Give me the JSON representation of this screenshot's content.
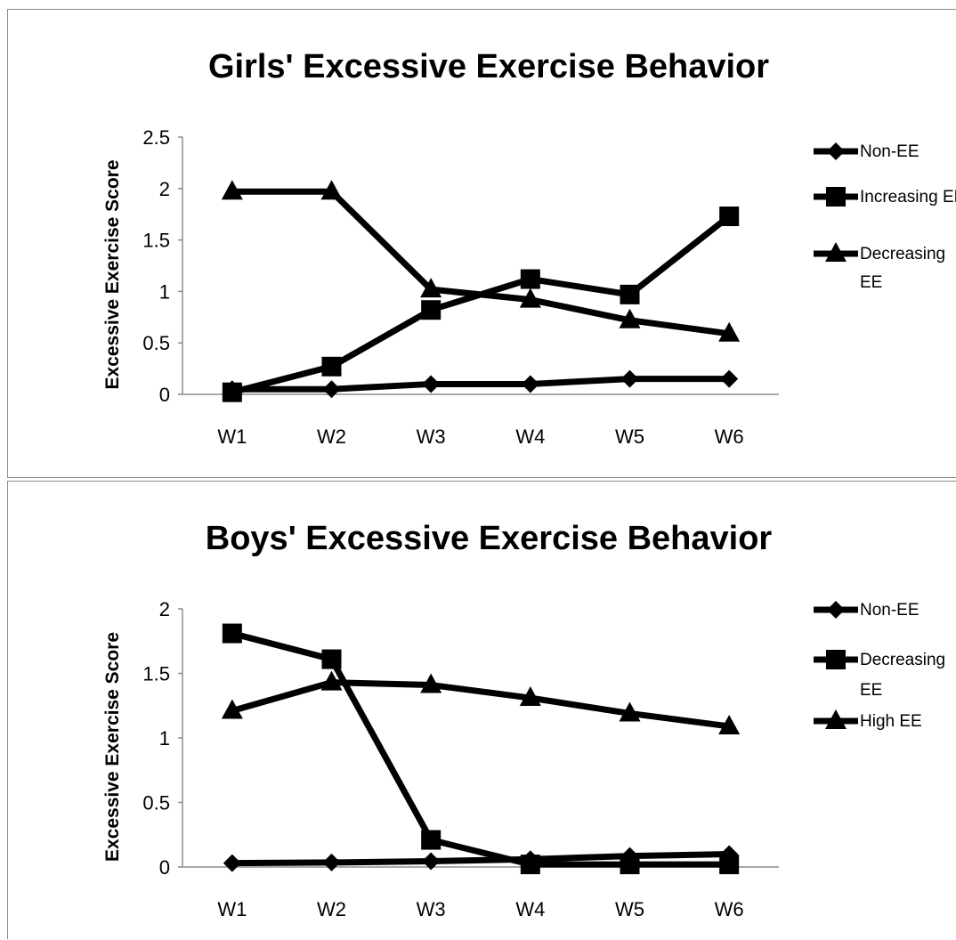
{
  "chart_data": [
    {
      "type": "line",
      "title": "Girls' Excessive Exercise Behavior",
      "xlabel": "",
      "ylabel": "Excessive Exercise Score",
      "categories": [
        "W1",
        "W2",
        "W3",
        "W4",
        "W5",
        "W6"
      ],
      "ylim": [
        0,
        2.5
      ],
      "yticks": [
        0,
        0.5,
        1,
        1.5,
        2,
        2.5
      ],
      "ytick_labels": [
        "0",
        "0.5",
        "1",
        "1.5",
        "2",
        "2.5"
      ],
      "grid": false,
      "legend_position": "right",
      "line_color": "#000000",
      "series": [
        {
          "name": "Non-EE",
          "marker": "diamond",
          "values": [
            0.05,
            0.05,
            0.1,
            0.1,
            0.15,
            0.15
          ]
        },
        {
          "name": "Increasing EE",
          "marker": "square",
          "values": [
            0.02,
            0.27,
            0.82,
            1.12,
            0.97,
            1.73
          ]
        },
        {
          "name": "Decreasing EE",
          "marker": "triangle",
          "values": [
            1.97,
            1.97,
            1.02,
            0.92,
            0.72,
            0.59
          ]
        }
      ]
    },
    {
      "type": "line",
      "title": "Boys' Excessive Exercise Behavior",
      "xlabel": "",
      "ylabel": "Excessive Exercise Score",
      "categories": [
        "W1",
        "W2",
        "W3",
        "W4",
        "W5",
        "W6"
      ],
      "ylim": [
        0,
        2
      ],
      "yticks": [
        0,
        0.5,
        1,
        1.5,
        2
      ],
      "ytick_labels": [
        "0",
        "0.5",
        "1",
        "1.5",
        "2"
      ],
      "grid": false,
      "legend_position": "right",
      "line_color": "#000000",
      "series": [
        {
          "name": "Non-EE",
          "marker": "diamond",
          "values": [
            0.03,
            0.035,
            0.045,
            0.06,
            0.085,
            0.1
          ]
        },
        {
          "name": "Decreasing EE",
          "marker": "square",
          "values": [
            1.81,
            1.61,
            0.21,
            0.02,
            0.02,
            0.02
          ]
        },
        {
          "name": "High EE",
          "marker": "triangle",
          "values": [
            1.21,
            1.43,
            1.41,
            1.31,
            1.19,
            1.09
          ]
        }
      ]
    }
  ]
}
